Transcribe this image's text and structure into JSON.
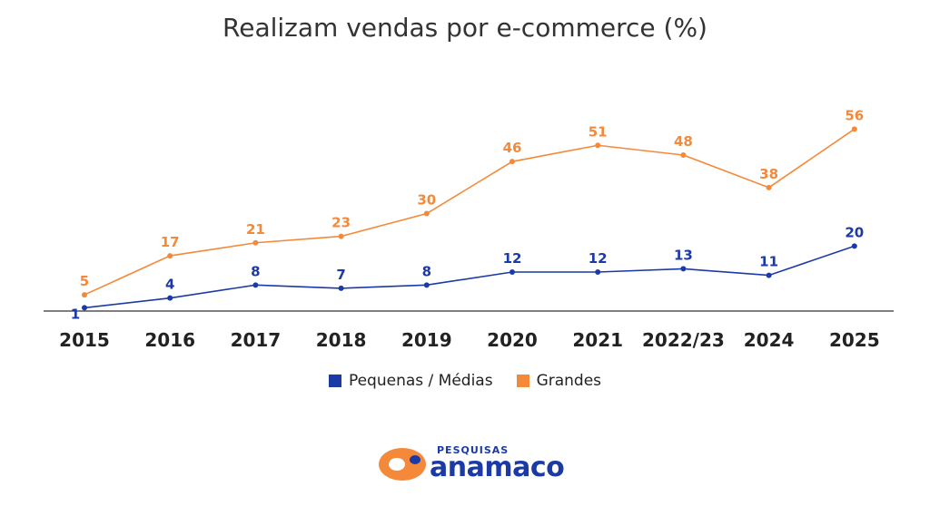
{
  "chart_data": {
    "type": "line",
    "title": "Realizam vendas por e-commerce (%)",
    "xlabel": "",
    "ylabel": "",
    "categories": [
      "2015",
      "2016",
      "2017",
      "2018",
      "2019",
      "2020",
      "2021",
      "2022/23",
      "2024",
      "2025"
    ],
    "ylim": [
      0,
      60
    ],
    "grid": false,
    "legend_position": "bottom",
    "series": [
      {
        "name": "Pequenas / Médias",
        "color": "#1b3aa6",
        "values": [
          1,
          4,
          8,
          7,
          8,
          12,
          12,
          13,
          11,
          20
        ]
      },
      {
        "name": "Grandes",
        "color": "#f5893a",
        "values": [
          5,
          17,
          21,
          23,
          30,
          46,
          51,
          48,
          38,
          56
        ]
      }
    ]
  },
  "logo": {
    "small_text": "PESQUISAS",
    "big_text": "anamaco",
    "orange": "#f5893a",
    "blue": "#1b3aa6"
  }
}
